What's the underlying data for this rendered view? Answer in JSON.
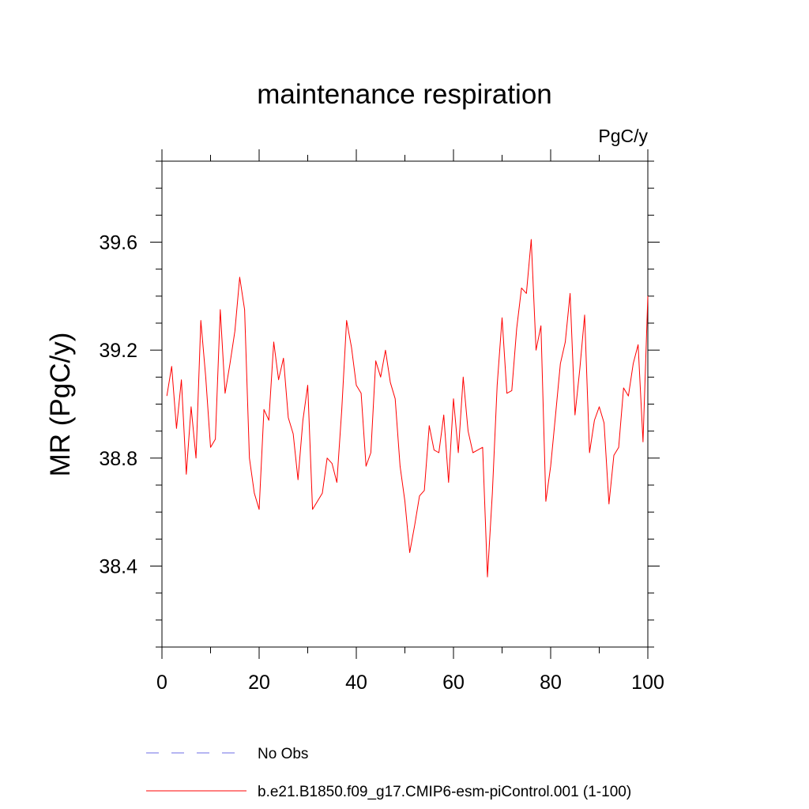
{
  "chart_data": {
    "type": "line",
    "title": "maintenance respiration",
    "units_label": "PgC/y",
    "xlabel": "",
    "ylabel": "MR  (PgC/y)",
    "xlim": [
      0,
      100
    ],
    "ylim": [
      38.1,
      39.9
    ],
    "x_ticks": [
      0,
      20,
      40,
      60,
      80,
      100
    ],
    "x_tick_labels": [
      "0",
      "20",
      "40",
      "60",
      "80",
      "100"
    ],
    "y_ticks": [
      38.4,
      38.8,
      39.2,
      39.6
    ],
    "y_tick_labels": [
      "38.4",
      "38.8",
      "39.2",
      "39.6"
    ],
    "grid": false,
    "series": [
      {
        "name": "b.e21.B1850.f09_g17.CMIP6-esm-piControl.001 (1-100)",
        "color": "#ff0000",
        "x": [
          1,
          2,
          3,
          4,
          5,
          6,
          7,
          8,
          9,
          10,
          11,
          12,
          13,
          14,
          15,
          16,
          17,
          18,
          19,
          20,
          21,
          22,
          23,
          24,
          25,
          26,
          27,
          28,
          29,
          30,
          31,
          32,
          33,
          34,
          35,
          36,
          37,
          38,
          39,
          40,
          41,
          42,
          43,
          44,
          45,
          46,
          47,
          48,
          49,
          50,
          51,
          52,
          53,
          54,
          55,
          56,
          57,
          58,
          59,
          60,
          61,
          62,
          63,
          64,
          65,
          66,
          67,
          68,
          69,
          70,
          71,
          72,
          73,
          74,
          75,
          76,
          77,
          78,
          79,
          80,
          81,
          82,
          83,
          84,
          85,
          86,
          87,
          88,
          89,
          90,
          91,
          92,
          93,
          94,
          95,
          96,
          97,
          98,
          99,
          100
        ],
        "values": [
          39.03,
          39.14,
          38.91,
          39.09,
          38.74,
          38.99,
          38.8,
          39.31,
          39.1,
          38.84,
          38.87,
          39.35,
          39.04,
          39.15,
          39.27,
          39.47,
          39.35,
          38.8,
          38.67,
          38.61,
          38.98,
          38.94,
          39.23,
          39.09,
          39.17,
          38.95,
          38.89,
          38.72,
          38.94,
          39.07,
          38.61,
          38.64,
          38.67,
          38.8,
          38.78,
          38.71,
          38.98,
          39.31,
          39.21,
          39.07,
          39.04,
          38.77,
          38.82,
          39.16,
          39.1,
          39.2,
          39.08,
          39.02,
          38.77,
          38.64,
          38.45,
          38.55,
          38.66,
          38.68,
          38.92,
          38.83,
          38.82,
          38.96,
          38.71,
          39.02,
          38.82,
          39.1,
          38.9,
          38.82,
          38.83,
          38.84,
          38.36,
          38.67,
          39.07,
          39.32,
          39.04,
          39.05,
          39.28,
          39.43,
          39.41,
          39.61,
          39.2,
          39.29,
          38.64,
          38.77,
          38.96,
          39.15,
          39.23,
          39.41,
          38.96,
          39.13,
          39.33,
          38.82,
          38.94,
          38.99,
          38.93,
          38.63,
          38.81,
          38.84,
          39.06,
          39.03,
          39.15,
          39.22,
          38.86,
          39.4
        ]
      }
    ],
    "legend": [
      {
        "label": "No Obs",
        "style": "dashed",
        "color": "#6e6ee6"
      },
      {
        "label": "b.e21.B1850.f09_g17.CMIP6-esm-piControl.001 (1-100)",
        "style": "solid",
        "color": "#ff0000"
      }
    ]
  }
}
